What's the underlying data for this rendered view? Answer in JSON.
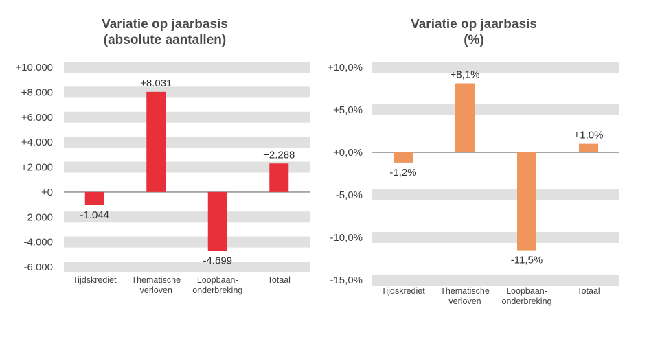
{
  "chart_data": [
    {
      "type": "bar",
      "title_line1": "Variatie op jaarbasis",
      "title_line2": "(absolute aantallen)",
      "categories": [
        [
          "Tijdskrediet"
        ],
        [
          "Thematische",
          "verloven"
        ],
        [
          "Loopbaan-",
          "onderbreking"
        ],
        [
          "Totaal"
        ]
      ],
      "values": [
        -1044,
        8031,
        -4699,
        2288
      ],
      "data_labels": [
        "-1.044",
        "+8.031",
        "-4.699",
        "+2.288"
      ],
      "yticks": [
        10000,
        8000,
        6000,
        4000,
        2000,
        0,
        -2000,
        -4000,
        -6000
      ],
      "ytick_labels": [
        "+10.000",
        "+8.000",
        "+6.000",
        "+4.000",
        "+2.000",
        "+0",
        "-2.000",
        "-4.000",
        "-6.000"
      ],
      "ylim": [
        -6000,
        10000
      ],
      "xlabel": "",
      "ylabel": "",
      "grid": true,
      "bar_color": "#E8303A"
    },
    {
      "type": "bar",
      "title_line1": "Variatie op jaarbasis",
      "title_line2": "(%)",
      "categories": [
        [
          "Tijdskrediet"
        ],
        [
          "Thematische",
          "verloven"
        ],
        [
          "Loopbaan-",
          "onderbreking"
        ],
        [
          "Totaal"
        ]
      ],
      "values": [
        -1.2,
        8.1,
        -11.5,
        1.0
      ],
      "data_labels": [
        "-1,2%",
        "+8,1%",
        "-11,5%",
        "+1,0%"
      ],
      "yticks": [
        10,
        5,
        0,
        -5,
        -10,
        -15
      ],
      "ytick_labels": [
        "+10,0%",
        "+5,0%",
        "+0,0%",
        "-5,0%",
        "-10,0%",
        "-15,0%"
      ],
      "ylim": [
        -15,
        10
      ],
      "xlabel": "",
      "ylabel": "",
      "grid": true,
      "bar_color": "#F0965D"
    }
  ],
  "colors": {
    "band": "#E0E0E0",
    "zero_line": "#A6A6A6"
  }
}
